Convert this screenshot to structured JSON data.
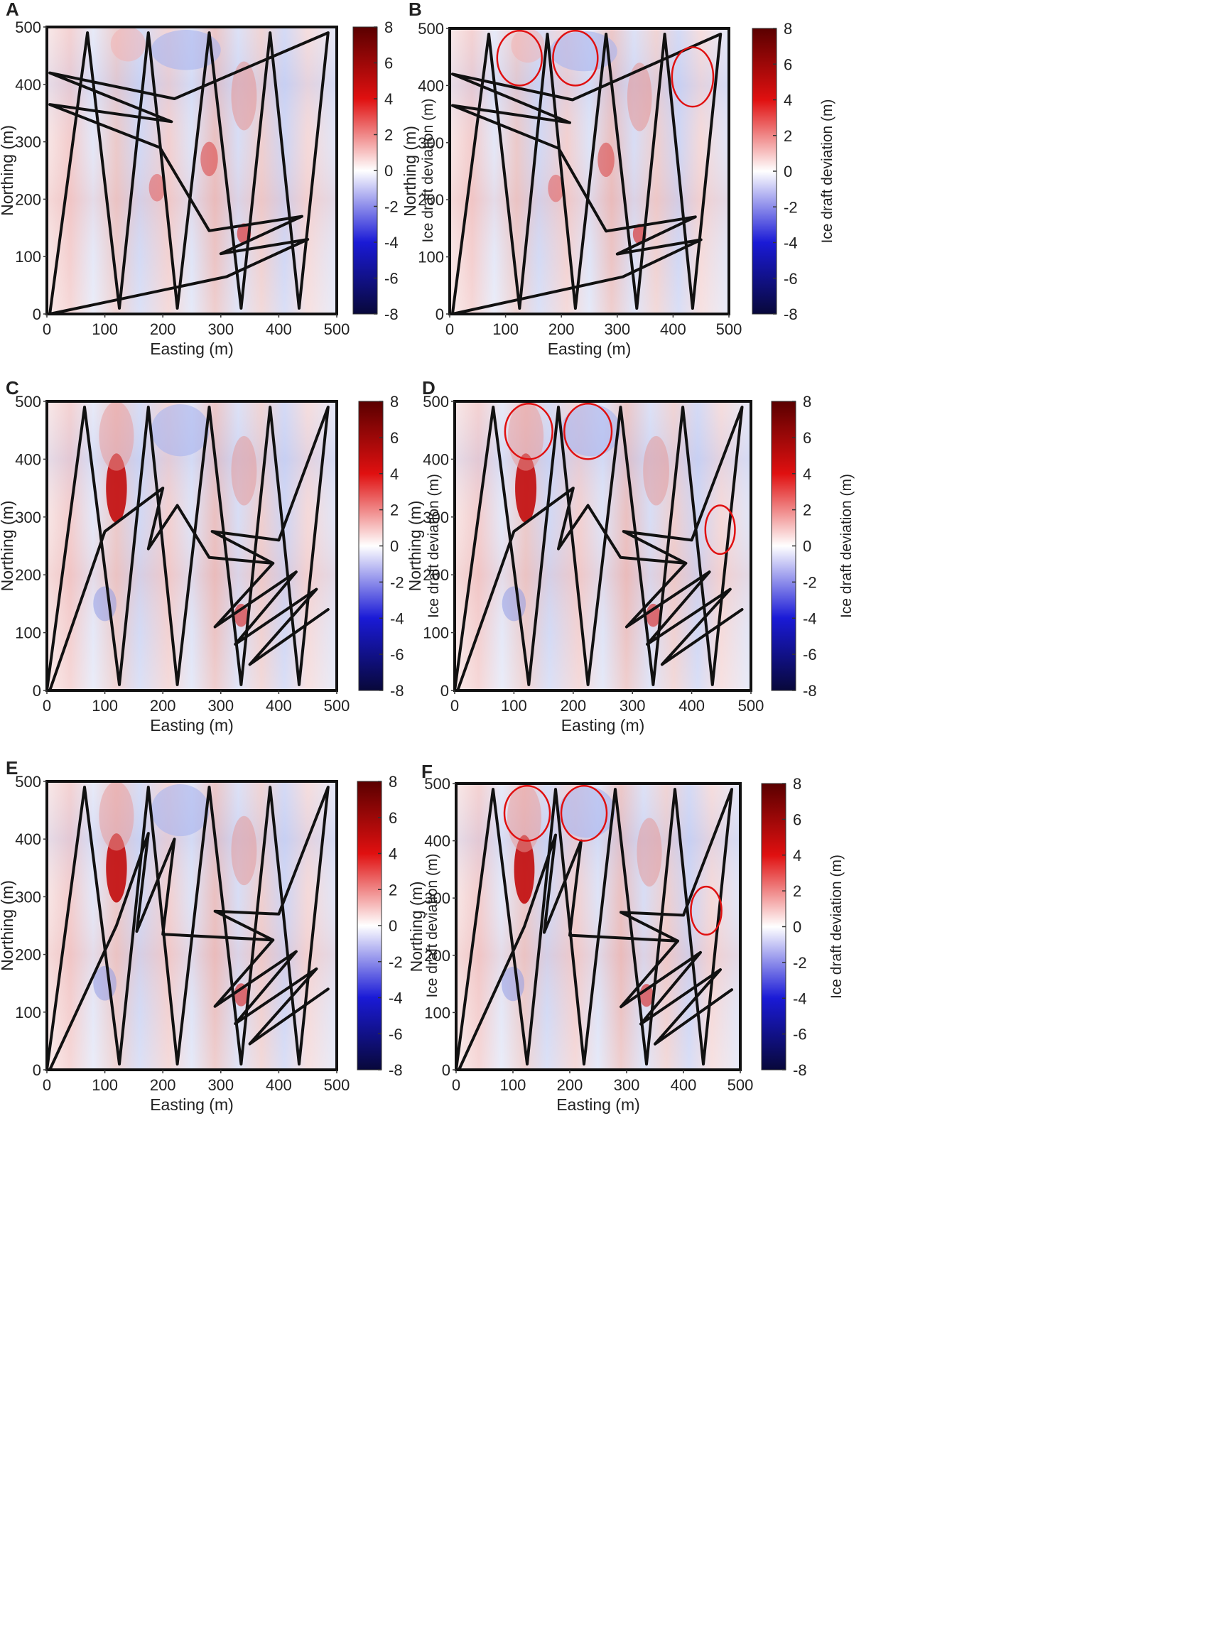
{
  "colorbar": {
    "label": "Ice draft deviation (m)",
    "range": [
      -8,
      8
    ],
    "ticks": [
      -8,
      -6,
      -4,
      -2,
      0,
      2,
      4,
      6,
      8
    ],
    "colors": [
      "#08083a",
      "#1a1ad6",
      "#ffffff",
      "#e01010",
      "#5a0000"
    ]
  },
  "chart_data": [
    {
      "panel": "A",
      "type": "heatmap",
      "xlabel": "Easting (m)",
      "ylabel": "Northing (m)",
      "xlim": [
        0,
        500
      ],
      "ylim": [
        0,
        500
      ],
      "xticks": [
        0,
        100,
        200,
        300,
        400,
        500
      ],
      "yticks": [
        0,
        100,
        200,
        300,
        400,
        500
      ],
      "highlight_circles": [],
      "track": [
        [
          5,
          0
        ],
        [
          70,
          490
        ],
        [
          125,
          10
        ],
        [
          175,
          490
        ],
        [
          225,
          10
        ],
        [
          280,
          490
        ],
        [
          335,
          10
        ],
        [
          385,
          490
        ],
        [
          435,
          10
        ],
        [
          485,
          490
        ],
        [
          220,
          375
        ],
        [
          5,
          420
        ],
        [
          215,
          335
        ],
        [
          5,
          365
        ],
        [
          195,
          290
        ],
        [
          280,
          145
        ],
        [
          440,
          170
        ],
        [
          300,
          105
        ],
        [
          450,
          130
        ],
        [
          310,
          65
        ],
        [
          5,
          0
        ]
      ]
    },
    {
      "panel": "B",
      "type": "heatmap",
      "xlabel": "Easting (m)",
      "ylabel": "Northing (m)",
      "xlim": [
        0,
        500
      ],
      "ylim": [
        0,
        500
      ],
      "xticks": [
        0,
        100,
        200,
        300,
        400,
        500
      ],
      "yticks": [
        0,
        100,
        200,
        300,
        400,
        500
      ],
      "highlight_circles": [
        [
          125,
          448,
          40,
          48
        ],
        [
          225,
          448,
          40,
          48
        ],
        [
          435,
          415,
          37,
          52
        ]
      ],
      "track": [
        [
          5,
          0
        ],
        [
          70,
          490
        ],
        [
          125,
          10
        ],
        [
          175,
          490
        ],
        [
          225,
          10
        ],
        [
          280,
          490
        ],
        [
          335,
          10
        ],
        [
          385,
          490
        ],
        [
          435,
          10
        ],
        [
          485,
          490
        ],
        [
          220,
          375
        ],
        [
          5,
          420
        ],
        [
          215,
          335
        ],
        [
          5,
          365
        ],
        [
          195,
          290
        ],
        [
          280,
          145
        ],
        [
          440,
          170
        ],
        [
          300,
          105
        ],
        [
          450,
          130
        ],
        [
          310,
          65
        ],
        [
          5,
          0
        ]
      ]
    },
    {
      "panel": "C",
      "type": "heatmap",
      "xlabel": "Easting (m)",
      "ylabel": "Northing (m)",
      "xlim": [
        0,
        500
      ],
      "ylim": [
        0,
        500
      ],
      "xticks": [
        0,
        100,
        200,
        300,
        400,
        500
      ],
      "yticks": [
        0,
        100,
        200,
        300,
        400,
        500
      ],
      "highlight_circles": [],
      "track": [
        [
          0,
          0
        ],
        [
          65,
          490
        ],
        [
          125,
          10
        ],
        [
          175,
          490
        ],
        [
          225,
          10
        ],
        [
          280,
          490
        ],
        [
          335,
          10
        ],
        [
          385,
          490
        ],
        [
          435,
          10
        ],
        [
          485,
          490
        ],
        [
          400,
          260
        ],
        [
          285,
          275
        ],
        [
          390,
          220
        ],
        [
          280,
          230
        ],
        [
          225,
          320
        ],
        [
          175,
          245
        ],
        [
          200,
          350
        ],
        [
          100,
          275
        ],
        [
          5,
          0
        ],
        [
          0,
          0
        ]
      ],
      "track2": [
        [
          485,
          140
        ],
        [
          350,
          45
        ],
        [
          465,
          175
        ],
        [
          325,
          80
        ],
        [
          430,
          205
        ],
        [
          290,
          110
        ],
        [
          390,
          220
        ]
      ]
    },
    {
      "panel": "D",
      "type": "heatmap",
      "xlabel": "Easting (m)",
      "ylabel": "Northing (m)",
      "xlim": [
        0,
        500
      ],
      "ylim": [
        0,
        500
      ],
      "xticks": [
        0,
        100,
        200,
        300,
        400,
        500
      ],
      "yticks": [
        0,
        100,
        200,
        300,
        400,
        500
      ],
      "highlight_circles": [
        [
          125,
          448,
          40,
          48
        ],
        [
          225,
          448,
          40,
          48
        ],
        [
          448,
          278,
          25,
          42
        ]
      ],
      "track": [
        [
          0,
          0
        ],
        [
          65,
          490
        ],
        [
          125,
          10
        ],
        [
          175,
          490
        ],
        [
          225,
          10
        ],
        [
          280,
          490
        ],
        [
          335,
          10
        ],
        [
          385,
          490
        ],
        [
          435,
          10
        ],
        [
          485,
          490
        ],
        [
          400,
          260
        ],
        [
          285,
          275
        ],
        [
          390,
          220
        ],
        [
          280,
          230
        ],
        [
          225,
          320
        ],
        [
          175,
          245
        ],
        [
          200,
          350
        ],
        [
          100,
          275
        ],
        [
          5,
          0
        ],
        [
          0,
          0
        ]
      ],
      "track2": [
        [
          485,
          140
        ],
        [
          350,
          45
        ],
        [
          465,
          175
        ],
        [
          325,
          80
        ],
        [
          430,
          205
        ],
        [
          290,
          110
        ],
        [
          390,
          220
        ]
      ]
    },
    {
      "panel": "E",
      "type": "heatmap",
      "xlabel": "Easting (m)",
      "ylabel": "Northing (m)",
      "xlim": [
        0,
        500
      ],
      "ylim": [
        0,
        500
      ],
      "xticks": [
        0,
        100,
        200,
        300,
        400,
        500
      ],
      "yticks": [
        0,
        100,
        200,
        300,
        400,
        500
      ],
      "highlight_circles": [],
      "track": [
        [
          0,
          0
        ],
        [
          65,
          490
        ],
        [
          125,
          10
        ],
        [
          175,
          490
        ],
        [
          225,
          10
        ],
        [
          280,
          490
        ],
        [
          335,
          10
        ],
        [
          385,
          490
        ],
        [
          435,
          10
        ],
        [
          485,
          490
        ],
        [
          400,
          270
        ],
        [
          290,
          275
        ],
        [
          390,
          225
        ],
        [
          200,
          235
        ],
        [
          220,
          400
        ],
        [
          155,
          240
        ],
        [
          175,
          410
        ],
        [
          120,
          250
        ],
        [
          5,
          0
        ],
        [
          0,
          0
        ]
      ],
      "track2": [
        [
          485,
          140
        ],
        [
          350,
          45
        ],
        [
          465,
          175
        ],
        [
          325,
          80
        ],
        [
          430,
          205
        ],
        [
          290,
          110
        ],
        [
          390,
          225
        ]
      ]
    },
    {
      "panel": "F",
      "type": "heatmap",
      "xlabel": "Easting (m)",
      "ylabel": "Northing (m)",
      "xlim": [
        0,
        500
      ],
      "ylim": [
        0,
        500
      ],
      "xticks": [
        0,
        100,
        200,
        300,
        400,
        500
      ],
      "yticks": [
        0,
        100,
        200,
        300,
        400,
        500
      ],
      "highlight_circles": [
        [
          125,
          448,
          40,
          48
        ],
        [
          225,
          448,
          40,
          48
        ],
        [
          440,
          278,
          27,
          42
        ]
      ],
      "track": [
        [
          0,
          0
        ],
        [
          65,
          490
        ],
        [
          125,
          10
        ],
        [
          175,
          490
        ],
        [
          225,
          10
        ],
        [
          280,
          490
        ],
        [
          335,
          10
        ],
        [
          385,
          490
        ],
        [
          435,
          10
        ],
        [
          485,
          490
        ],
        [
          400,
          270
        ],
        [
          290,
          275
        ],
        [
          390,
          225
        ],
        [
          200,
          235
        ],
        [
          220,
          400
        ],
        [
          155,
          240
        ],
        [
          175,
          410
        ],
        [
          120,
          250
        ],
        [
          5,
          0
        ],
        [
          0,
          0
        ]
      ],
      "track2": [
        [
          485,
          140
        ],
        [
          350,
          45
        ],
        [
          465,
          175
        ],
        [
          325,
          80
        ],
        [
          430,
          205
        ],
        [
          290,
          110
        ],
        [
          390,
          225
        ]
      ]
    }
  ]
}
